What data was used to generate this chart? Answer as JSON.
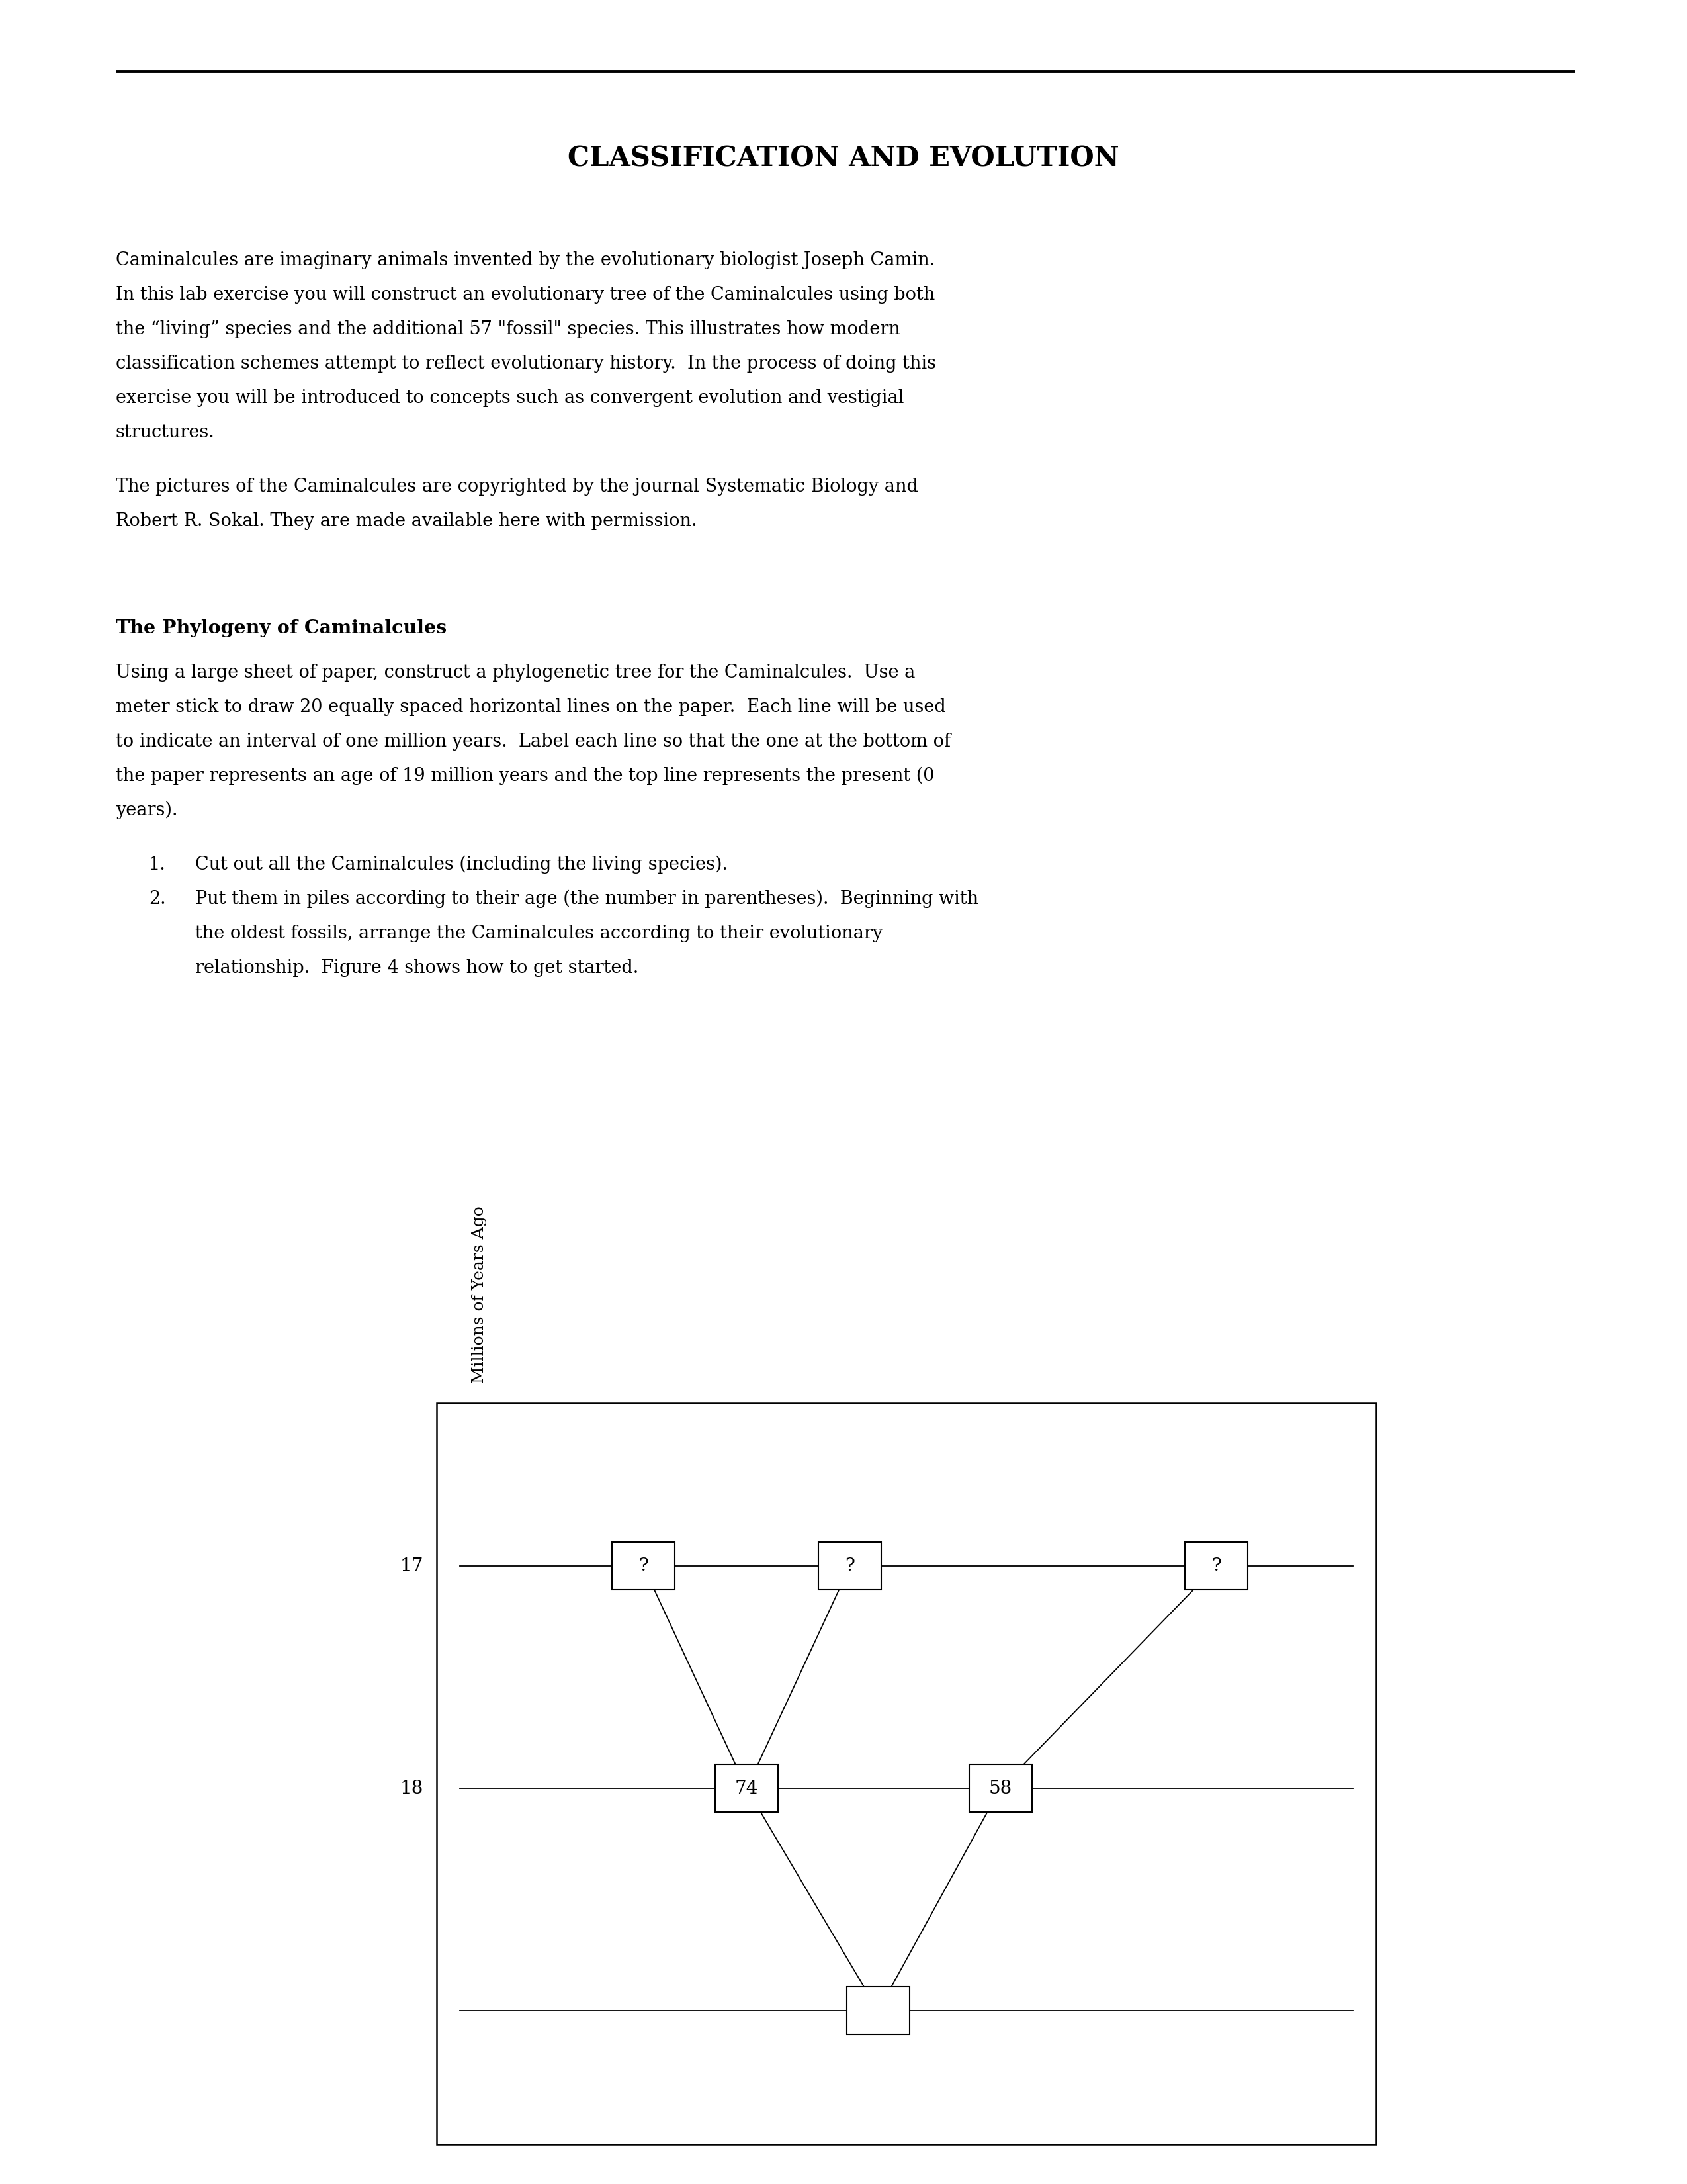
{
  "title": "CLASSIFICATION AND EVOLUTION",
  "para1_lines": [
    "Caminalcules are imaginary animals invented by the evolutionary biologist Joseph Camin.",
    "In this lab exercise you will construct an evolutionary tree of the Caminalcules using both",
    "the “living” species and the additional 57 \"fossil\" species. This illustrates how modern",
    "classification schemes attempt to reflect evolutionary history.  In the process of doing this",
    "exercise you will be introduced to concepts such as convergent evolution and vestigial",
    "structures."
  ],
  "para2_lines": [
    "The pictures of the Caminalcules are copyrighted by the journal Systematic Biology and",
    "Robert R. Sokal. They are made available here with permission."
  ],
  "section_title": "The Phylogeny of Caminalcules",
  "section_lines": [
    "Using a large sheet of paper, construct a phylogenetic tree for the Caminalcules.  Use a",
    "meter stick to draw 20 equally spaced horizontal lines on the paper.  Each line will be used",
    "to indicate an interval of one million years.  Label each line so that the one at the bottom of",
    "the paper represents an age of 19 million years and the top line represents the present (0",
    "years)."
  ],
  "list1": "Cut out all the Caminalcules (including the living species).",
  "list2a": "Put them in piles according to their age (the number in parentheses).  Beginning with",
  "list2b": "the oldest fossils, arrange the Caminalcules according to their evolutionary",
  "list2c": "relationship.  Figure 4 shows how to get started.",
  "ylabel_text": "Millions of Years Ago",
  "background_color": "#ffffff",
  "text_color": "#000000"
}
